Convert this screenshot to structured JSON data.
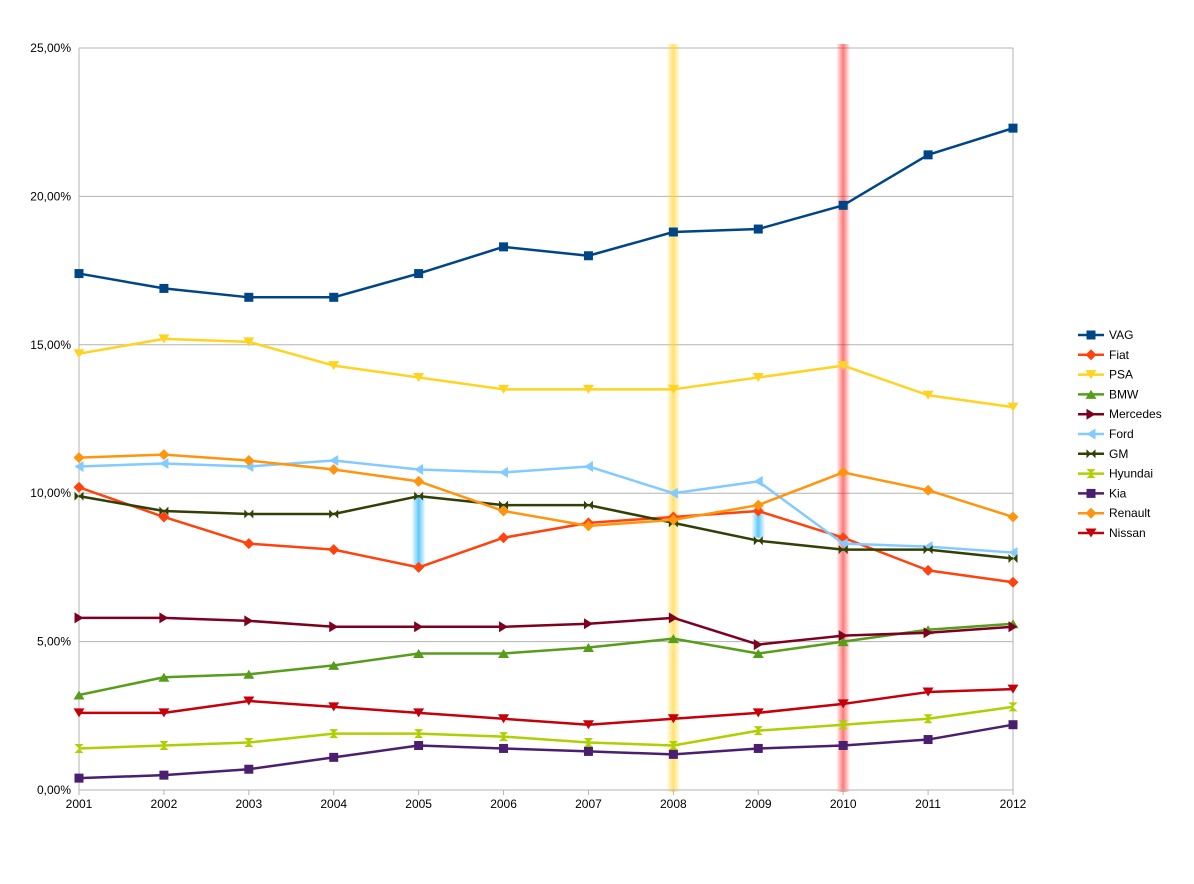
{
  "chart_data": {
    "type": "line",
    "title": "",
    "xlabel": "",
    "ylabel": "",
    "x": [
      "2001",
      "2002",
      "2003",
      "2004",
      "2005",
      "2006",
      "2007",
      "2008",
      "2009",
      "2010",
      "2011",
      "2012"
    ],
    "ylim": [
      0,
      25
    ],
    "yticks": [
      0,
      5,
      10,
      15,
      20,
      25
    ],
    "ytick_labels": [
      "0,00%",
      "5,00%",
      "10,00%",
      "15,00%",
      "20,00%",
      "25,00%"
    ],
    "grid": "horizontal",
    "legend_position": "right",
    "series": [
      {
        "name": "VAG",
        "color": "#004586",
        "marker": "square",
        "values": [
          17.4,
          16.9,
          16.6,
          16.6,
          17.4,
          18.3,
          18.0,
          18.8,
          18.9,
          19.7,
          21.4,
          22.3
        ]
      },
      {
        "name": "Fiat",
        "color": "#ff420e",
        "marker": "diamond",
        "values": [
          10.2,
          9.2,
          8.3,
          8.1,
          7.5,
          8.5,
          9.0,
          9.2,
          9.4,
          8.5,
          7.4,
          7.0
        ]
      },
      {
        "name": "PSA",
        "color": "#ffd320",
        "marker": "triangle-down",
        "values": [
          14.7,
          15.2,
          15.1,
          14.3,
          13.9,
          13.5,
          13.5,
          13.5,
          13.9,
          14.3,
          13.3,
          12.9
        ]
      },
      {
        "name": "BMW",
        "color": "#579d1c",
        "marker": "triangle-up",
        "values": [
          3.2,
          3.8,
          3.9,
          4.2,
          4.6,
          4.6,
          4.8,
          5.1,
          4.6,
          5.0,
          5.4,
          5.6
        ]
      },
      {
        "name": "Mercedes",
        "color": "#7e0021",
        "marker": "triangle-right",
        "values": [
          5.8,
          5.8,
          5.7,
          5.5,
          5.5,
          5.5,
          5.6,
          5.8,
          4.9,
          5.2,
          5.3,
          5.5
        ]
      },
      {
        "name": "Ford",
        "color": "#83caff",
        "marker": "triangle-left",
        "values": [
          10.9,
          11.0,
          10.9,
          11.1,
          10.8,
          10.7,
          10.9,
          10.0,
          10.4,
          8.3,
          8.2,
          8.0
        ]
      },
      {
        "name": "GM",
        "color": "#314004",
        "marker": "bowtie",
        "values": [
          9.9,
          9.4,
          9.3,
          9.3,
          9.9,
          9.6,
          9.6,
          9.0,
          8.4,
          8.1,
          8.1,
          7.8
        ]
      },
      {
        "name": "Hyundai",
        "color": "#aecf00",
        "marker": "hourglass",
        "values": [
          1.4,
          1.5,
          1.6,
          1.9,
          1.9,
          1.8,
          1.6,
          1.5,
          2.0,
          2.2,
          2.4,
          2.8
        ]
      },
      {
        "name": "Kia",
        "color": "#4b1f6f",
        "marker": "square",
        "values": [
          0.4,
          0.5,
          0.7,
          1.1,
          1.5,
          1.4,
          1.3,
          1.2,
          1.4,
          1.5,
          1.7,
          2.2
        ]
      },
      {
        "name": "Renault",
        "color": "#ff950e",
        "marker": "diamond",
        "values": [
          11.2,
          11.3,
          11.1,
          10.8,
          10.4,
          9.4,
          8.9,
          9.1,
          9.6,
          10.7,
          10.1,
          9.2
        ]
      },
      {
        "name": "Nissan",
        "color": "#c5000b",
        "marker": "triangle-down",
        "values": [
          2.6,
          2.6,
          3.0,
          2.8,
          2.6,
          2.4,
          2.2,
          2.4,
          2.6,
          2.9,
          3.3,
          3.4
        ]
      }
    ],
    "highlight_bands": [
      {
        "x": "2008",
        "color": "#ffd320"
      },
      {
        "x": "2010",
        "color": "#ff2020"
      }
    ],
    "highlight_segments": [
      {
        "x": "2005",
        "from": 9.9,
        "to": 7.5,
        "color": "#29b6f6"
      },
      {
        "x": "2009",
        "from": 9.6,
        "to": 8.5,
        "color": "#29b6f6"
      }
    ]
  }
}
